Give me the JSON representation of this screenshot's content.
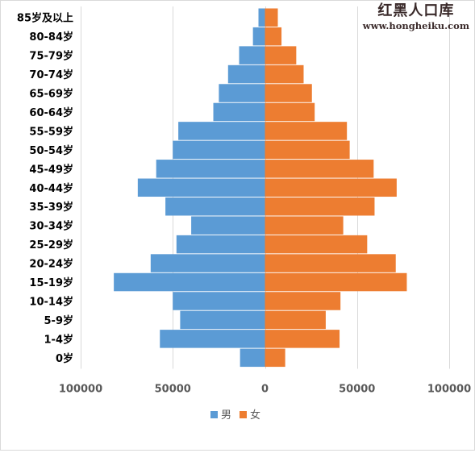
{
  "watermark": {
    "name": "红黑人口库",
    "url": "www.hongheiku.com"
  },
  "chart_data": {
    "type": "bar",
    "orientation": "horizontal",
    "subtype": "population-pyramid",
    "title": "",
    "xlabel": "",
    "ylabel": "",
    "categories": [
      "85岁及以上",
      "80-84岁",
      "75-79岁",
      "70-74岁",
      "65-69岁",
      "60-64岁",
      "55-59岁",
      "50-54岁",
      "45-49岁",
      "40-44岁",
      "35-39岁",
      "30-34岁",
      "25-29岁",
      "20-24岁",
      "15-19岁",
      "10-14岁",
      "5-9岁",
      "1-4岁",
      "0岁"
    ],
    "series": [
      {
        "name": "男",
        "color": "#5b9bd5",
        "values": [
          3500,
          6500,
          14000,
          20000,
          25000,
          28000,
          47000,
          50000,
          59000,
          69000,
          54000,
          40000,
          48000,
          62000,
          82000,
          50000,
          46000,
          57000,
          13500
        ]
      },
      {
        "name": "女",
        "color": "#ed7d31",
        "values": [
          7000,
          9000,
          17000,
          21000,
          25500,
          27000,
          44500,
          46000,
          59000,
          71500,
          59500,
          42500,
          55500,
          71000,
          77000,
          41000,
          33000,
          40500,
          11000
        ]
      }
    ],
    "xlim": [
      -100000,
      100000
    ],
    "xticks": [
      -100000,
      -50000,
      0,
      50000,
      100000
    ],
    "xtick_labels": [
      "100000",
      "50000",
      "0",
      "50000",
      "100000"
    ],
    "grid": "vertical",
    "legend": "bottom-center"
  }
}
